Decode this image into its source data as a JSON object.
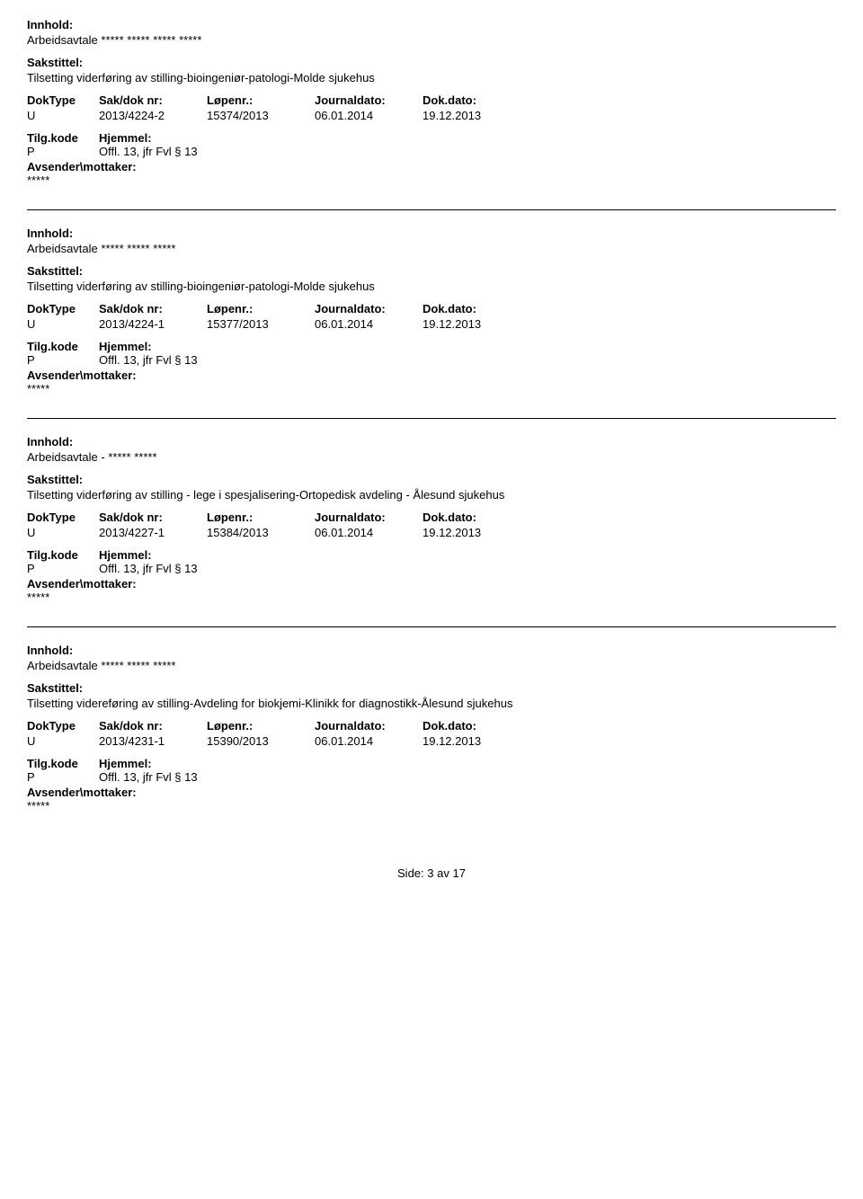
{
  "labels": {
    "innhold": "Innhold:",
    "sakstittel": "Sakstittel:",
    "doktype": "DokType",
    "saknr": "Sak/dok nr:",
    "lopenr": "Løpenr.:",
    "journaldato": "Journaldato:",
    "dokdato": "Dok.dato:",
    "tilgkode": "Tilg.kode",
    "hjemmel": "Hjemmel:",
    "avsender": "Avsender\\mottaker:"
  },
  "records": [
    {
      "innhold": "Arbeidsavtale ***** ***** ***** *****",
      "sakstittel": "Tilsetting viderføring av stilling-bioingeniør-patologi-Molde sjukehus",
      "doktype": "U",
      "saknr": "2013/4224-2",
      "lopenr": "15374/2013",
      "journaldato": "06.01.2014",
      "dokdato": "19.12.2013",
      "tilgkode": "P",
      "hjemmel": "Offl. 13, jfr Fvl § 13",
      "avsender": "*****"
    },
    {
      "innhold": "Arbeidsavtale ***** ***** *****",
      "sakstittel": "Tilsetting viderføring av stilling-bioingeniør-patologi-Molde sjukehus",
      "doktype": "U",
      "saknr": "2013/4224-1",
      "lopenr": "15377/2013",
      "journaldato": "06.01.2014",
      "dokdato": "19.12.2013",
      "tilgkode": "P",
      "hjemmel": "Offl. 13, jfr Fvl § 13",
      "avsender": "*****"
    },
    {
      "innhold": "Arbeidsavtale - ***** *****",
      "sakstittel": "Tilsetting viderføring av stilling - lege i spesjalisering-Ortopedisk avdeling - Ålesund sjukehus",
      "doktype": "U",
      "saknr": "2013/4227-1",
      "lopenr": "15384/2013",
      "journaldato": "06.01.2014",
      "dokdato": "19.12.2013",
      "tilgkode": "P",
      "hjemmel": "Offl. 13, jfr Fvl § 13",
      "avsender": "*****"
    },
    {
      "innhold": "Arbeidsavtale ***** ***** *****",
      "sakstittel": "Tilsetting videreføring av stilling-Avdeling for biokjemi-Klinikk for diagnostikk-Ålesund sjukehus",
      "doktype": "U",
      "saknr": "2013/4231-1",
      "lopenr": "15390/2013",
      "journaldato": "06.01.2014",
      "dokdato": "19.12.2013",
      "tilgkode": "P",
      "hjemmel": "Offl. 13, jfr Fvl § 13",
      "avsender": "*****"
    }
  ],
  "footer": {
    "prefix": "Side:",
    "current": "3",
    "separator": "av",
    "total": "17"
  }
}
